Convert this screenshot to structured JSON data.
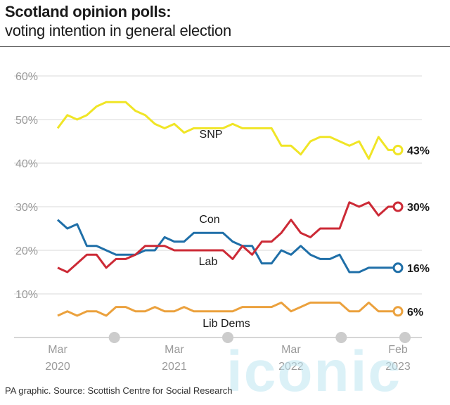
{
  "header": {
    "title": "Scotland opinion polls:",
    "subtitle": "voting intention in general election"
  },
  "footer": {
    "source": "PA graphic. Source: Scottish Centre for Social Research"
  },
  "watermark": "iconic",
  "chart_data": {
    "type": "line",
    "ylim": [
      0,
      60
    ],
    "yticks": [
      10,
      20,
      30,
      40,
      50,
      60
    ],
    "ytick_labels": [
      "10%",
      "20%",
      "30%",
      "40%",
      "50%",
      "60%"
    ],
    "xlim": [
      "2020-03",
      "2023-02"
    ],
    "xticks": [
      {
        "date": "2020-03",
        "line1": "Mar",
        "line2": "2020"
      },
      {
        "date": "2021-03",
        "line1": "Mar",
        "line2": "2021"
      },
      {
        "date": "2022-03",
        "line1": "Mar",
        "line2": "2022"
      },
      {
        "date": "2023-02",
        "line1": "Feb",
        "line2": "2023"
      }
    ],
    "grid": true,
    "series": [
      {
        "name": "SNP",
        "color": "#f0e526",
        "end_label": "43%",
        "x": [
          "2020-03",
          "2020-04",
          "2020-05",
          "2020-06",
          "2020-07",
          "2020-08",
          "2020-09",
          "2020-10",
          "2020-11",
          "2020-12",
          "2021-01",
          "2021-02",
          "2021-03",
          "2021-04",
          "2021-05",
          "2021-06",
          "2021-07",
          "2021-08",
          "2021-09",
          "2021-10",
          "2021-11",
          "2021-12",
          "2022-01",
          "2022-02",
          "2022-03",
          "2022-04",
          "2022-05",
          "2022-06",
          "2022-07",
          "2022-08",
          "2022-09",
          "2022-10",
          "2022-11",
          "2022-12",
          "2023-01",
          "2023-02"
        ],
        "values": [
          48,
          51,
          50,
          51,
          53,
          54,
          54,
          54,
          52,
          51,
          49,
          48,
          49,
          47,
          48,
          48,
          48,
          48,
          49,
          48,
          48,
          48,
          48,
          44,
          44,
          42,
          45,
          46,
          46,
          45,
          44,
          45,
          41,
          46,
          43,
          43
        ]
      },
      {
        "name": "Con",
        "color": "#1f6fa8",
        "end_label": "16%",
        "x": [
          "2020-03",
          "2020-04",
          "2020-05",
          "2020-06",
          "2020-07",
          "2020-08",
          "2020-09",
          "2020-10",
          "2020-11",
          "2020-12",
          "2021-01",
          "2021-02",
          "2021-03",
          "2021-04",
          "2021-05",
          "2021-06",
          "2021-07",
          "2021-08",
          "2021-09",
          "2021-10",
          "2021-11",
          "2021-12",
          "2022-01",
          "2022-02",
          "2022-03",
          "2022-04",
          "2022-05",
          "2022-06",
          "2022-07",
          "2022-08",
          "2022-09",
          "2022-10",
          "2022-11",
          "2022-12",
          "2023-01",
          "2023-02"
        ],
        "values": [
          27,
          25,
          26,
          21,
          21,
          20,
          19,
          19,
          19,
          20,
          20,
          23,
          22,
          22,
          24,
          24,
          24,
          24,
          22,
          21,
          21,
          17,
          17,
          20,
          19,
          21,
          19,
          18,
          18,
          19,
          15,
          15,
          16,
          16,
          16,
          16
        ]
      },
      {
        "name": "Lab",
        "color": "#cc2a36",
        "end_label": "30%",
        "x": [
          "2020-03",
          "2020-04",
          "2020-05",
          "2020-06",
          "2020-07",
          "2020-08",
          "2020-09",
          "2020-10",
          "2020-11",
          "2020-12",
          "2021-01",
          "2021-02",
          "2021-03",
          "2021-04",
          "2021-05",
          "2021-06",
          "2021-07",
          "2021-08",
          "2021-09",
          "2021-10",
          "2021-11",
          "2021-12",
          "2022-01",
          "2022-02",
          "2022-03",
          "2022-04",
          "2022-05",
          "2022-06",
          "2022-07",
          "2022-08",
          "2022-09",
          "2022-10",
          "2022-11",
          "2022-12",
          "2023-01",
          "2023-02"
        ],
        "values": [
          16,
          15,
          17,
          19,
          19,
          16,
          18,
          18,
          19,
          21,
          21,
          21,
          20,
          20,
          20,
          20,
          20,
          20,
          18,
          21,
          19,
          22,
          22,
          24,
          27,
          24,
          23,
          25,
          25,
          25,
          31,
          30,
          31,
          28,
          30,
          30
        ]
      },
      {
        "name": "Lib Dems",
        "color": "#eba13d",
        "end_label": "6%",
        "x": [
          "2020-03",
          "2020-04",
          "2020-05",
          "2020-06",
          "2020-07",
          "2020-08",
          "2020-09",
          "2020-10",
          "2020-11",
          "2020-12",
          "2021-01",
          "2021-02",
          "2021-03",
          "2021-04",
          "2021-05",
          "2021-06",
          "2021-07",
          "2021-08",
          "2021-09",
          "2021-10",
          "2021-11",
          "2021-12",
          "2022-01",
          "2022-02",
          "2022-03",
          "2022-04",
          "2022-05",
          "2022-06",
          "2022-07",
          "2022-08",
          "2022-09",
          "2022-10",
          "2022-11",
          "2022-12",
          "2023-01",
          "2023-02"
        ],
        "values": [
          5,
          6,
          5,
          6,
          6,
          5,
          7,
          7,
          6,
          6,
          7,
          6,
          6,
          7,
          6,
          6,
          6,
          6,
          6,
          7,
          7,
          7,
          7,
          8,
          6,
          7,
          8,
          8,
          8,
          8,
          6,
          6,
          8,
          6,
          6,
          6
        ]
      }
    ]
  }
}
